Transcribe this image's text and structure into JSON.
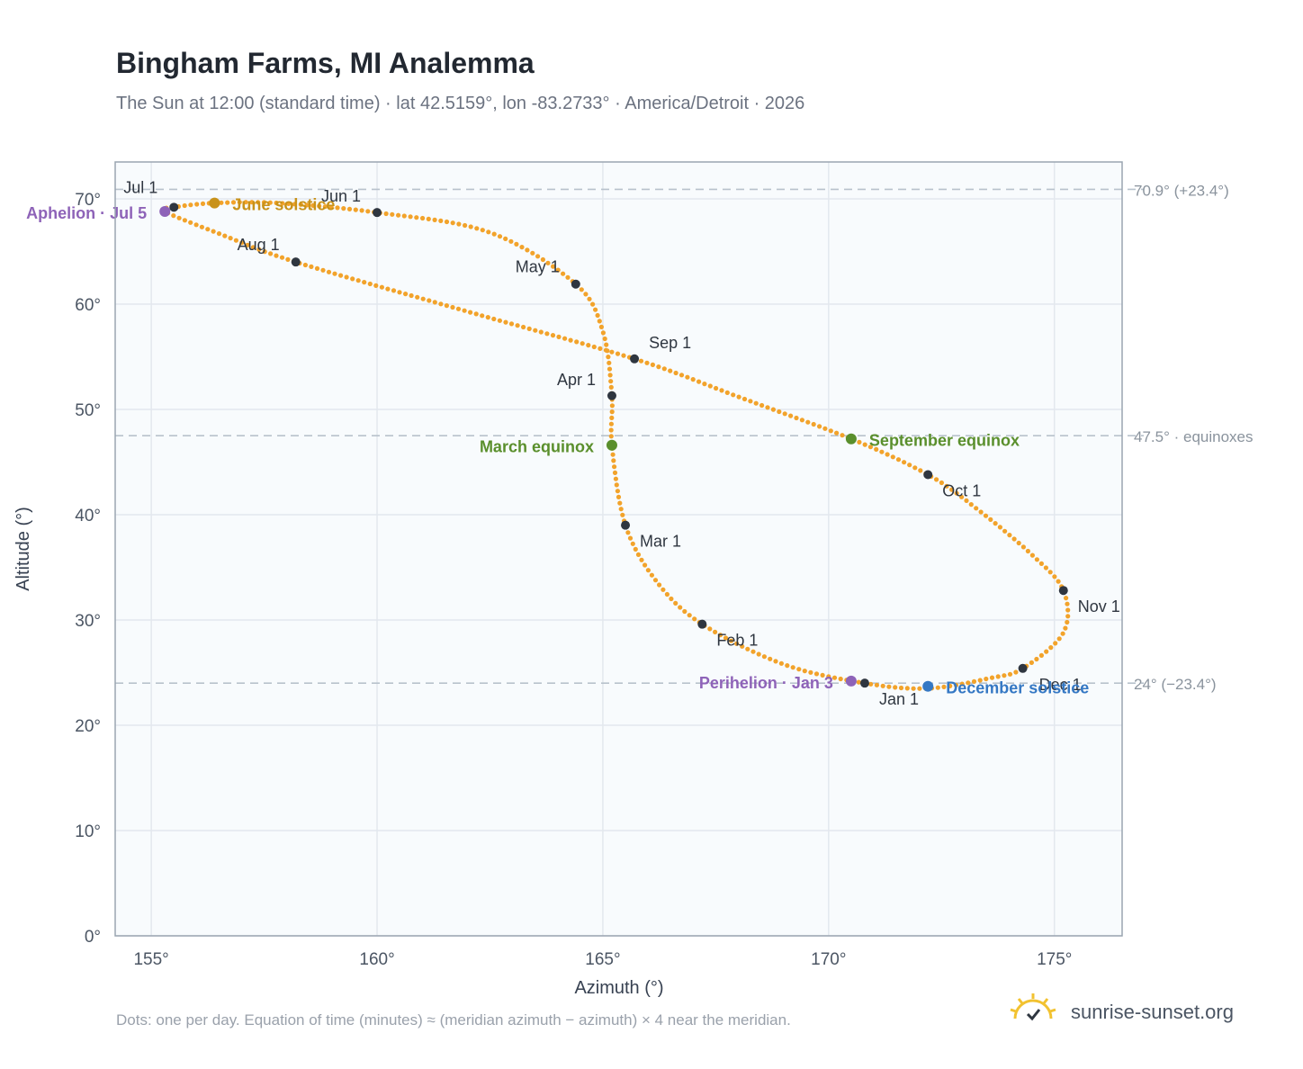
{
  "header": {
    "title": "Bingham Farms, MI Analemma",
    "subtitle": "The Sun at 12:00 (standard time) · lat 42.5159°, lon -83.2733° · America/Detroit · 2026"
  },
  "footer": {
    "note": "Dots: one per day. Equation of time (minutes) ≈ (meridian azimuth − azimuth) × 4 near the meridian.",
    "brand": "sunrise-sunset.org"
  },
  "colors": {
    "curve": "#f2a32b",
    "month_marker": "#2f3640",
    "solstice_june": "#c8921a",
    "equinox": "#5a8f2c",
    "aphelion": "#8e63b8",
    "december": "#3578c4",
    "plot_bg": "#f8fbfd",
    "frame": "#9aa5b1"
  },
  "chart_data": {
    "type": "scatter",
    "xlabel": "Azimuth (°)",
    "ylabel": "Altitude (°)",
    "xlim": [
      154.2,
      176.5
    ],
    "ylim": [
      0,
      73.5
    ],
    "xticks": [
      155,
      160,
      165,
      170,
      175
    ],
    "yticks": [
      0,
      10,
      20,
      30,
      40,
      50,
      60,
      70
    ],
    "xtick_labels": [
      "155°",
      "160°",
      "165°",
      "170°",
      "175°"
    ],
    "ytick_labels": [
      "0°",
      "10°",
      "20°",
      "30°",
      "40°",
      "50°",
      "60°",
      "70°"
    ],
    "grid": true,
    "reference_lines": [
      {
        "y": 70.9,
        "label": "70.9° (+23.4°)"
      },
      {
        "y": 47.5,
        "label": "47.5° · equinoxes"
      },
      {
        "y": 24.0,
        "label": "24° (−23.4°)"
      }
    ],
    "path_points": [
      [
        170.8,
        24.0
      ],
      [
        172.2,
        23.5
      ],
      [
        173.6,
        24.5
      ],
      [
        174.3,
        25.4
      ],
      [
        175.2,
        28.8
      ],
      [
        175.2,
        32.8
      ],
      [
        174.5,
        36.2
      ],
      [
        173.3,
        40.5
      ],
      [
        172.2,
        43.8
      ],
      [
        170.5,
        47.2
      ],
      [
        168.0,
        51.2
      ],
      [
        165.7,
        54.8
      ],
      [
        162.0,
        59.3
      ],
      [
        158.2,
        64.0
      ],
      [
        156.5,
        66.7
      ],
      [
        155.3,
        68.8
      ],
      [
        155.5,
        69.2
      ],
      [
        156.4,
        69.6
      ],
      [
        157.8,
        69.6
      ],
      [
        160.0,
        68.7
      ],
      [
        162.5,
        66.8
      ],
      [
        164.4,
        61.9
      ],
      [
        165.0,
        57.4
      ],
      [
        165.2,
        51.3
      ],
      [
        165.2,
        46.6
      ],
      [
        165.5,
        39.0
      ],
      [
        166.2,
        33.6
      ],
      [
        167.2,
        29.6
      ],
      [
        169.0,
        25.8
      ],
      [
        170.8,
        24.0
      ]
    ],
    "month_markers": [
      {
        "label": "Jan 1",
        "x": 170.8,
        "y": 24.0
      },
      {
        "label": "Feb 1",
        "x": 167.2,
        "y": 29.6
      },
      {
        "label": "Mar 1",
        "x": 165.5,
        "y": 39.0
      },
      {
        "label": "Apr 1",
        "x": 165.2,
        "y": 51.3
      },
      {
        "label": "May 1",
        "x": 164.4,
        "y": 61.9
      },
      {
        "label": "Jun 1",
        "x": 160.0,
        "y": 68.7
      },
      {
        "label": "Jul 1",
        "x": 155.5,
        "y": 69.2
      },
      {
        "label": "Aug 1",
        "x": 158.2,
        "y": 64.0
      },
      {
        "label": "Sep 1",
        "x": 165.7,
        "y": 54.8
      },
      {
        "label": "Oct 1",
        "x": 172.2,
        "y": 43.8
      },
      {
        "label": "Nov 1",
        "x": 175.2,
        "y": 32.8
      },
      {
        "label": "Dec 1",
        "x": 174.3,
        "y": 25.4
      }
    ],
    "events": [
      {
        "label": "June solstice",
        "x": 156.4,
        "y": 69.6,
        "color_key": "solstice_june"
      },
      {
        "label": "March equinox",
        "x": 165.2,
        "y": 46.6,
        "color_key": "equinox"
      },
      {
        "label": "September equinox",
        "x": 170.5,
        "y": 47.2,
        "color_key": "equinox"
      },
      {
        "label": "Aphelion · Jul 5",
        "x": 155.3,
        "y": 68.8,
        "color_key": "aphelion"
      },
      {
        "label": "Perihelion · Jan 3",
        "x": 170.5,
        "y": 24.2,
        "color_key": "aphelion"
      },
      {
        "label": "December solstice",
        "x": 172.2,
        "y": 23.7,
        "color_key": "december"
      }
    ]
  }
}
